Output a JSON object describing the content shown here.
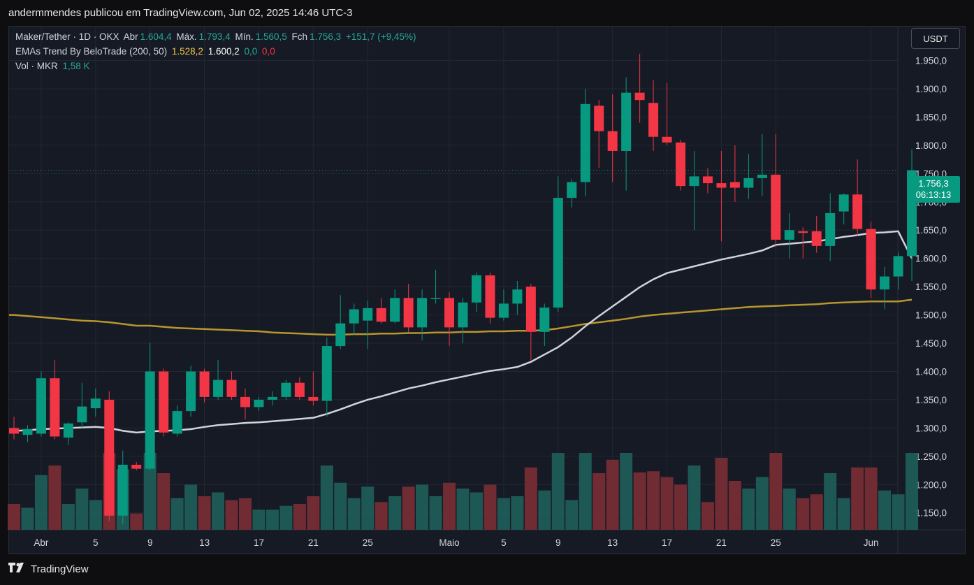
{
  "header": {
    "text": "andermmendes publicou em TradingView.com, Jun 02, 2025 14:46 UTC-3"
  },
  "legend": {
    "line1": {
      "symbol": "Maker/Tether · 1D · OKX",
      "open_label": "Abr",
      "open": "1.604,4",
      "high_label": "Máx.",
      "high": "1.793,4",
      "low_label": "Mín.",
      "low": "1.560,5",
      "close_label": "Fch",
      "close": "1.756,3",
      "change": "+151,7 (+9,45%)"
    },
    "line2": {
      "name": "EMAs Trend By BeloTrade (200, 50)",
      "v1": "1.528,2",
      "v2": "1.600,2",
      "v3": "0,0",
      "v4": "0,0"
    },
    "line3": {
      "name": "Vol · MKR",
      "value": "1,58 K"
    }
  },
  "currency_button": "USDT",
  "last_price": {
    "price": "1.756,3",
    "countdown": "06:13:13"
  },
  "footer": {
    "brand": "TradingView"
  },
  "colors": {
    "up": "#089981",
    "down": "#f23645",
    "ema200": "#b8962e",
    "ema50": "#d1d4dc",
    "bg": "#161a25"
  },
  "chart_data": {
    "type": "candlestick",
    "y_ticks": [
      1150,
      1200,
      1250,
      1300,
      1350,
      1400,
      1450,
      1500,
      1550,
      1600,
      1650,
      1700,
      1750,
      1800,
      1850,
      1900,
      1950
    ],
    "y_tick_labels": [
      "1.150,0",
      "1.200,0",
      "1.250,0",
      "1.300,0",
      "1.350,0",
      "1.400,0",
      "1.450,0",
      "1.500,0",
      "1.550,0",
      "1.600,0",
      "1.650,0",
      "1.700,0",
      "1.750,0",
      "1.800,0",
      "1.850,0",
      "1.900,0",
      "1.950,0"
    ],
    "ylim": [
      1120,
      2010
    ],
    "x_ticks": [
      {
        "index": 2,
        "label": "Abr"
      },
      {
        "index": 6,
        "label": "5"
      },
      {
        "index": 10,
        "label": "9"
      },
      {
        "index": 14,
        "label": "13"
      },
      {
        "index": 18,
        "label": "17"
      },
      {
        "index": 22,
        "label": "21"
      },
      {
        "index": 26,
        "label": "25"
      },
      {
        "index": 32,
        "label": "Maio"
      },
      {
        "index": 36,
        "label": "5"
      },
      {
        "index": 40,
        "label": "9"
      },
      {
        "index": 44,
        "label": "13"
      },
      {
        "index": 48,
        "label": "17"
      },
      {
        "index": 52,
        "label": "21"
      },
      {
        "index": 56,
        "label": "25"
      },
      {
        "index": 63,
        "label": "Jun"
      }
    ],
    "candles": [
      {
        "o": 1300,
        "h": 1320,
        "l": 1280,
        "c": 1290
      },
      {
        "o": 1288,
        "h": 1305,
        "l": 1275,
        "c": 1298
      },
      {
        "o": 1290,
        "h": 1400,
        "l": 1285,
        "c": 1388
      },
      {
        "o": 1388,
        "h": 1420,
        "l": 1280,
        "c": 1285
      },
      {
        "o": 1283,
        "h": 1310,
        "l": 1270,
        "c": 1308
      },
      {
        "o": 1310,
        "h": 1380,
        "l": 1300,
        "c": 1338
      },
      {
        "o": 1335,
        "h": 1370,
        "l": 1320,
        "c": 1352
      },
      {
        "o": 1350,
        "h": 1365,
        "l": 1135,
        "c": 1145
      },
      {
        "o": 1145,
        "h": 1260,
        "l": 1130,
        "c": 1235
      },
      {
        "o": 1235,
        "h": 1240,
        "l": 1225,
        "c": 1228
      },
      {
        "o": 1228,
        "h": 1450,
        "l": 1225,
        "c": 1400
      },
      {
        "o": 1400,
        "h": 1405,
        "l": 1285,
        "c": 1292
      },
      {
        "o": 1290,
        "h": 1340,
        "l": 1285,
        "c": 1330
      },
      {
        "o": 1330,
        "h": 1410,
        "l": 1320,
        "c": 1400
      },
      {
        "o": 1400,
        "h": 1405,
        "l": 1345,
        "c": 1355
      },
      {
        "o": 1355,
        "h": 1420,
        "l": 1350,
        "c": 1385
      },
      {
        "o": 1385,
        "h": 1400,
        "l": 1350,
        "c": 1355
      },
      {
        "o": 1355,
        "h": 1370,
        "l": 1315,
        "c": 1337
      },
      {
        "o": 1337,
        "h": 1355,
        "l": 1330,
        "c": 1350
      },
      {
        "o": 1350,
        "h": 1365,
        "l": 1340,
        "c": 1355
      },
      {
        "o": 1355,
        "h": 1385,
        "l": 1350,
        "c": 1380
      },
      {
        "o": 1380,
        "h": 1390,
        "l": 1350,
        "c": 1355
      },
      {
        "o": 1355,
        "h": 1400,
        "l": 1340,
        "c": 1348
      },
      {
        "o": 1348,
        "h": 1460,
        "l": 1320,
        "c": 1445
      },
      {
        "o": 1445,
        "h": 1535,
        "l": 1440,
        "c": 1485
      },
      {
        "o": 1485,
        "h": 1520,
        "l": 1465,
        "c": 1510
      },
      {
        "o": 1490,
        "h": 1525,
        "l": 1440,
        "c": 1512
      },
      {
        "o": 1512,
        "h": 1530,
        "l": 1485,
        "c": 1488
      },
      {
        "o": 1488,
        "h": 1545,
        "l": 1485,
        "c": 1530
      },
      {
        "o": 1530,
        "h": 1555,
        "l": 1470,
        "c": 1478
      },
      {
        "o": 1478,
        "h": 1545,
        "l": 1455,
        "c": 1530
      },
      {
        "o": 1530,
        "h": 1580,
        "l": 1520,
        "c": 1530
      },
      {
        "o": 1530,
        "h": 1540,
        "l": 1445,
        "c": 1478
      },
      {
        "o": 1478,
        "h": 1530,
        "l": 1450,
        "c": 1522
      },
      {
        "o": 1522,
        "h": 1575,
        "l": 1505,
        "c": 1570
      },
      {
        "o": 1570,
        "h": 1575,
        "l": 1485,
        "c": 1495
      },
      {
        "o": 1495,
        "h": 1545,
        "l": 1490,
        "c": 1520
      },
      {
        "o": 1520,
        "h": 1560,
        "l": 1500,
        "c": 1545
      },
      {
        "o": 1550,
        "h": 1555,
        "l": 1420,
        "c": 1470
      },
      {
        "o": 1470,
        "h": 1520,
        "l": 1445,
        "c": 1513
      },
      {
        "o": 1513,
        "h": 1745,
        "l": 1505,
        "c": 1707
      },
      {
        "o": 1707,
        "h": 1740,
        "l": 1690,
        "c": 1735
      },
      {
        "o": 1735,
        "h": 1900,
        "l": 1710,
        "c": 1873
      },
      {
        "o": 1870,
        "h": 1880,
        "l": 1760,
        "c": 1825
      },
      {
        "o": 1825,
        "h": 1890,
        "l": 1735,
        "c": 1790
      },
      {
        "o": 1790,
        "h": 1920,
        "l": 1720,
        "c": 1893
      },
      {
        "o": 1893,
        "h": 1962,
        "l": 1840,
        "c": 1880
      },
      {
        "o": 1875,
        "h": 1915,
        "l": 1790,
        "c": 1815
      },
      {
        "o": 1815,
        "h": 1910,
        "l": 1800,
        "c": 1805
      },
      {
        "o": 1805,
        "h": 1810,
        "l": 1720,
        "c": 1728
      },
      {
        "o": 1728,
        "h": 1790,
        "l": 1650,
        "c": 1745
      },
      {
        "o": 1745,
        "h": 1760,
        "l": 1715,
        "c": 1733
      },
      {
        "o": 1733,
        "h": 1790,
        "l": 1630,
        "c": 1725
      },
      {
        "o": 1735,
        "h": 1800,
        "l": 1700,
        "c": 1725
      },
      {
        "o": 1725,
        "h": 1785,
        "l": 1705,
        "c": 1742
      },
      {
        "o": 1742,
        "h": 1820,
        "l": 1710,
        "c": 1748
      },
      {
        "o": 1748,
        "h": 1820,
        "l": 1620,
        "c": 1633
      },
      {
        "o": 1633,
        "h": 1680,
        "l": 1600,
        "c": 1650
      },
      {
        "o": 1648,
        "h": 1655,
        "l": 1600,
        "c": 1645
      },
      {
        "o": 1648,
        "h": 1675,
        "l": 1610,
        "c": 1622
      },
      {
        "o": 1622,
        "h": 1715,
        "l": 1595,
        "c": 1680
      },
      {
        "o": 1683,
        "h": 1715,
        "l": 1660,
        "c": 1713
      },
      {
        "o": 1713,
        "h": 1775,
        "l": 1640,
        "c": 1652
      },
      {
        "o": 1652,
        "h": 1665,
        "l": 1530,
        "c": 1545
      },
      {
        "o": 1545,
        "h": 1585,
        "l": 1510,
        "c": 1568
      },
      {
        "o": 1568,
        "h": 1610,
        "l": 1545,
        "c": 1604
      },
      {
        "o": 1604,
        "h": 1793,
        "l": 1560,
        "c": 1756
      }
    ],
    "ema200": [
      1500,
      1498,
      1496,
      1494,
      1492,
      1490,
      1489,
      1487,
      1484,
      1481,
      1481,
      1479,
      1477,
      1476,
      1475,
      1474,
      1473,
      1472,
      1471,
      1469,
      1468,
      1467,
      1466,
      1465,
      1465,
      1466,
      1466,
      1467,
      1467,
      1468,
      1468,
      1469,
      1469,
      1470,
      1470,
      1471,
      1471,
      1472,
      1472,
      1473,
      1476,
      1480,
      1484,
      1487,
      1490,
      1493,
      1497,
      1500,
      1502,
      1504,
      1506,
      1508,
      1510,
      1512,
      1514,
      1515,
      1516,
      1517,
      1518,
      1519,
      1521,
      1522,
      1523,
      1524,
      1524,
      1524,
      1527
    ],
    "ema50": [
      1295,
      1296,
      1298,
      1299,
      1300,
      1301,
      1302,
      1300,
      1295,
      1292,
      1294,
      1295,
      1296,
      1298,
      1302,
      1305,
      1307,
      1309,
      1310,
      1312,
      1314,
      1316,
      1318,
      1325,
      1333,
      1342,
      1350,
      1356,
      1363,
      1370,
      1375,
      1381,
      1386,
      1391,
      1396,
      1401,
      1404,
      1408,
      1417,
      1430,
      1443,
      1460,
      1480,
      1498,
      1515,
      1532,
      1549,
      1563,
      1574,
      1580,
      1586,
      1592,
      1598,
      1603,
      1608,
      1614,
      1624,
      1626,
      1628,
      1630,
      1634,
      1638,
      1641,
      1645,
      1646,
      1648,
      1600
    ]
  }
}
